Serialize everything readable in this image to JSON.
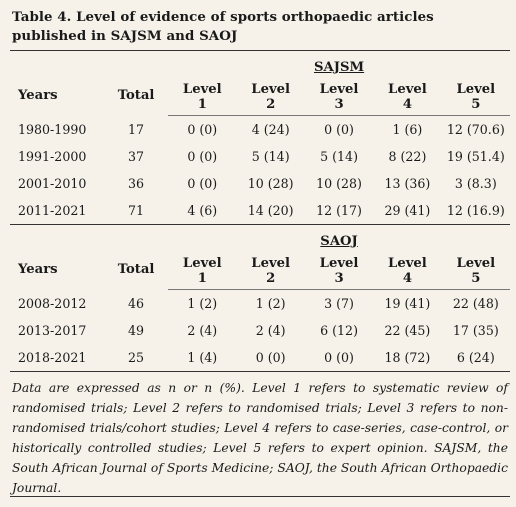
{
  "caption": "Table 4. Level of evidence of sports orthopaedic articles published in SAJSM and SAOJ",
  "columns": {
    "years": "Years",
    "total": "Total",
    "level_word": "Level",
    "levels": [
      "1",
      "2",
      "3",
      "4",
      "5"
    ]
  },
  "sections": [
    {
      "title": "SAJSM",
      "rows": [
        {
          "years": "1980-1990",
          "total": "17",
          "l1": "0 (0)",
          "l2": "4 (24)",
          "l3": "0 (0)",
          "l4": "1 (6)",
          "l5": "12 (70.6)"
        },
        {
          "years": "1991-2000",
          "total": "37",
          "l1": "0 (0)",
          "l2": "5 (14)",
          "l3": "5 (14)",
          "l4": "8 (22)",
          "l5": "19 (51.4)"
        },
        {
          "years": "2001-2010",
          "total": "36",
          "l1": "0 (0)",
          "l2": "10 (28)",
          "l3": "10 (28)",
          "l4": "13 (36)",
          "l5": "3 (8.3)"
        },
        {
          "years": "2011-2021",
          "total": "71",
          "l1": "4 (6)",
          "l2": "14 (20)",
          "l3": "12 (17)",
          "l4": "29 (41)",
          "l5": "12 (16.9)"
        }
      ]
    },
    {
      "title": "SAOJ",
      "rows": [
        {
          "years": "2008-2012",
          "total": "46",
          "l1": "1 (2)",
          "l2": "1 (2)",
          "l3": "3 (7)",
          "l4": "19 (41)",
          "l5": "22 (48)"
        },
        {
          "years": "2013-2017",
          "total": "49",
          "l1": "2 (4)",
          "l2": "2 (4)",
          "l3": "6 (12)",
          "l4": "22 (45)",
          "l5": "17 (35)"
        },
        {
          "years": "2018-2021",
          "total": "25",
          "l1": "1 (4)",
          "l2": "0 (0)",
          "l3": "0 (0)",
          "l4": "18 (72)",
          "l5": "6 (24)"
        }
      ]
    }
  ],
  "footnote": "Data are expressed as n or n (%). Level 1 refers to systematic review of randomised trials; Level 2 refers to randomised trials; Level 3 refers to non-randomised trials/cohort studies; Level 4 refers to case-series, case-control, or historically controlled studies; Level 5 refers to expert opinion. SAJSM, the South African Journal of Sports Medicine; SAOJ, the South African Orthopaedic Journal."
}
